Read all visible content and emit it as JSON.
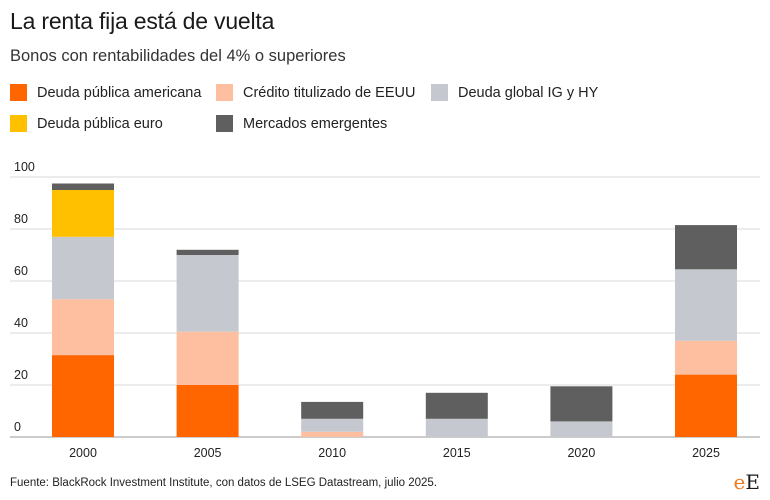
{
  "header": {
    "title": "La renta fija está de vuelta",
    "subtitle": "Bonos con rentabilidades del 4% o superiores"
  },
  "footer": {
    "source": "Fuente: BlackRock Investment Institute, con datos de LSEG Datastream, julio 2025.",
    "brand_first": "e",
    "brand_second": "E"
  },
  "chart_data": {
    "type": "bar",
    "stacked": true,
    "categories": [
      "2000",
      "2005",
      "2010",
      "2015",
      "2020",
      "2025"
    ],
    "yticks": [
      "0",
      "20",
      "40",
      "60",
      "80",
      "100"
    ],
    "ylim": [
      0,
      100
    ],
    "grid": true,
    "legend_position": "top",
    "series": [
      {
        "name": "Deuda pública americana",
        "color": "#ff6600",
        "values": [
          31.5,
          20,
          0,
          0,
          0,
          24
        ]
      },
      {
        "name": "Crédito titulizado de EEUU",
        "color": "#fdbf9f",
        "values": [
          21.5,
          20.5,
          2,
          0,
          0,
          13
        ]
      },
      {
        "name": "Deuda global IG y HY",
        "color": "#c5c8ce",
        "values": [
          24,
          29.5,
          5,
          7,
          6,
          27.5
        ]
      },
      {
        "name": "Deuda pública euro",
        "color": "#ffc000",
        "values": [
          18,
          0,
          0,
          0,
          0,
          0
        ]
      },
      {
        "name": "Mercados emergentes",
        "color": "#5f5f5f",
        "values": [
          2.5,
          2,
          6.5,
          10,
          13.5,
          17
        ]
      }
    ]
  }
}
